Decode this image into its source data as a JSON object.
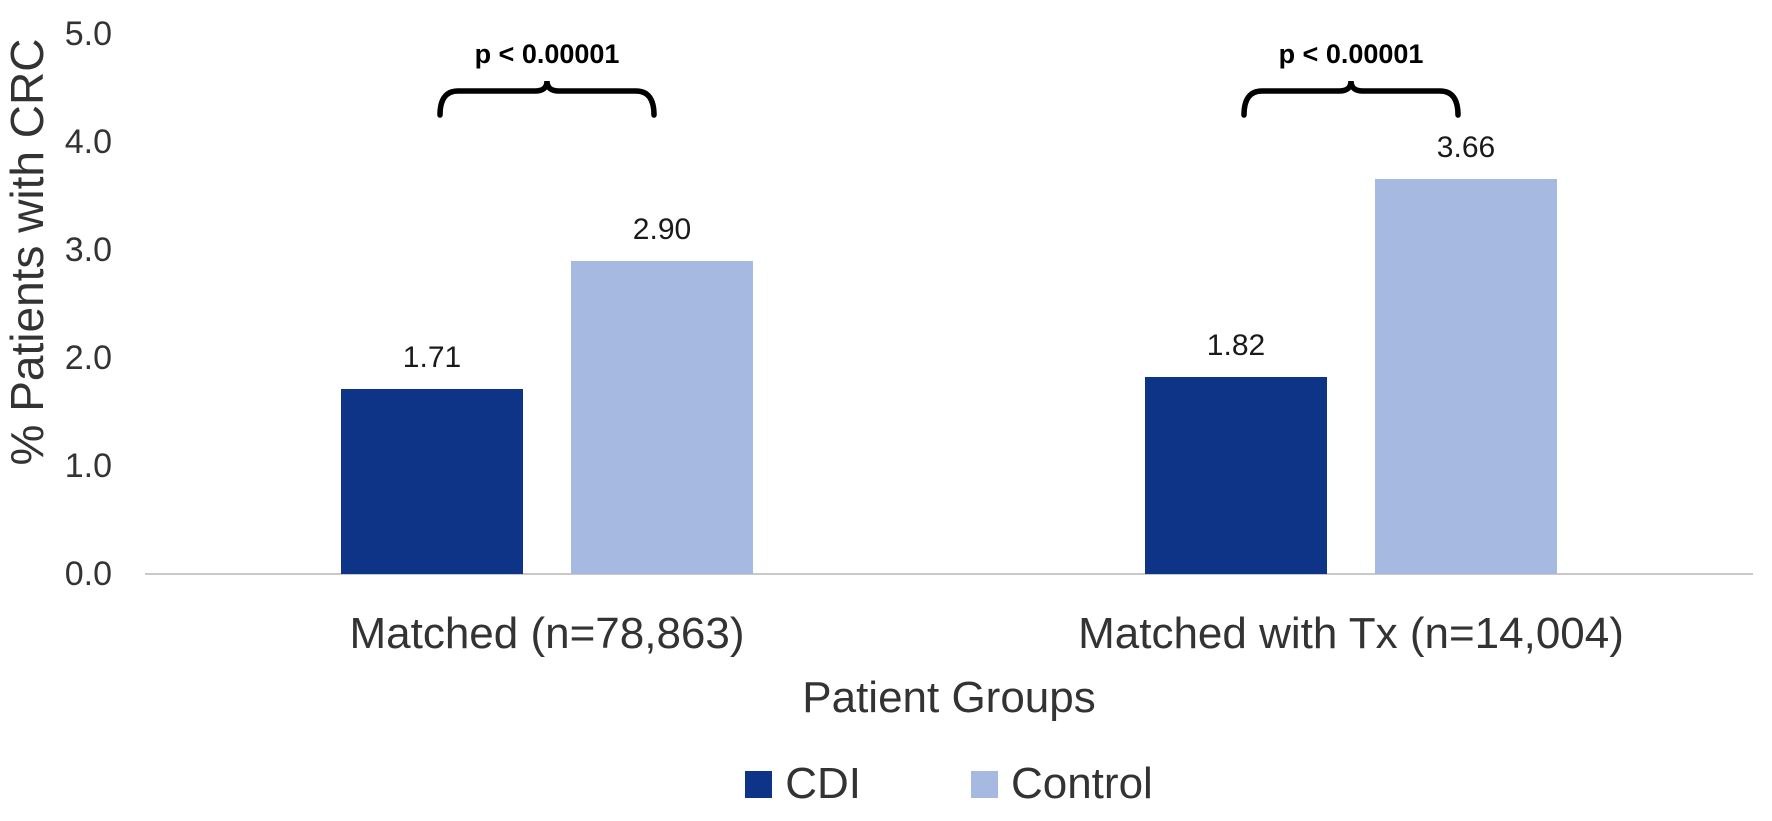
{
  "chart_data": {
    "type": "bar",
    "title": "",
    "ylabel": "% Patients with CRC",
    "xlabel": "Patient Groups",
    "ylim": [
      0,
      5
    ],
    "ytick_values": [
      0,
      1,
      2,
      3,
      4,
      5
    ],
    "ytick_labels": [
      "0.0",
      "1.0",
      "2.0",
      "3.0",
      "4.0",
      "5.0"
    ],
    "categories": [
      "Matched (n=78,863)",
      "Matched with Tx (n=14,004)"
    ],
    "series": [
      {
        "name": "CDI",
        "color": "#0d3487",
        "values": [
          1.71,
          1.82
        ]
      },
      {
        "name": "Control",
        "color": "#a6b9e1",
        "values": [
          2.9,
          3.66
        ]
      }
    ],
    "value_label_format": "0.00",
    "annotations": [
      {
        "text": "p < 0.00001",
        "category_index": 0
      },
      {
        "text": "p < 0.00001",
        "category_index": 1
      }
    ],
    "legend_position": "bottom",
    "grid": false,
    "axis_line_color": "#c9c9c9",
    "text_color": "#333333",
    "bracket_color": "#000000"
  }
}
